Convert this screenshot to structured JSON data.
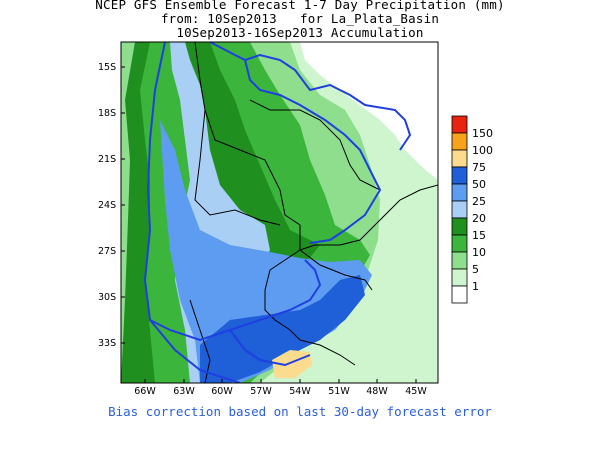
{
  "title": {
    "line1": "NCEP GFS Ensemble Forecast 1-7 Day Precipitation (mm)",
    "line2": "from: 10Sep2013   for La_Plata_Basin",
    "line3": "10Sep2013-16Sep2013 Accumulation"
  },
  "footer": "Bias correction based on last 30-day forecast error",
  "map": {
    "lat_labels": [
      "15S",
      "18S",
      "21S",
      "24S",
      "27S",
      "30S",
      "33S"
    ],
    "lon_labels": [
      "66W",
      "63W",
      "60W",
      "57W",
      "54W",
      "51W",
      "48W",
      "45W"
    ]
  },
  "legend": {
    "unit": "mm",
    "bins": [
      {
        "label": "150",
        "color": "#e8230f"
      },
      {
        "label": "100",
        "color": "#f7a21b"
      },
      {
        "label": "75",
        "color": "#fbdc8e"
      },
      {
        "label": "50",
        "color": "#1f5fd8"
      },
      {
        "label": "25",
        "color": "#5d9cf0"
      },
      {
        "label": "20",
        "color": "#a9cff5"
      },
      {
        "label": "15",
        "color": "#1f8f1f"
      },
      {
        "label": "10",
        "color": "#3cb53c"
      },
      {
        "label": "5",
        "color": "#8ede8e"
      },
      {
        "label": "1",
        "color": "#cff5cf"
      },
      {
        "label": "",
        "color": "#ffffff"
      }
    ]
  },
  "colors": {
    "basin_outline": "#1f3fe0",
    "borders": "#000000",
    "footer_text": "#2b5fd9"
  }
}
